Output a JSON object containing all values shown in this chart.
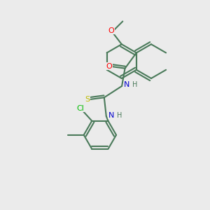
{
  "background_color": "#ebebeb",
  "bond_color": "#4a7a5a",
  "colors": {
    "O": "#ff0000",
    "N": "#0000cc",
    "S": "#bbbb00",
    "Cl": "#00bb00",
    "C_bond": "#4a7a5a"
  },
  "figsize": [
    3.0,
    3.0
  ],
  "dpi": 100
}
